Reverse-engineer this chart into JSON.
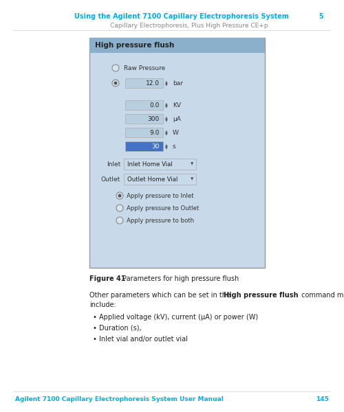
{
  "bg_color": "#ffffff",
  "header_title": "Using the Agilent 7100 Capillary Electrophoresis System",
  "header_page": "5",
  "header_subtitle": "Capillary Electrophoresis, Plus High Pressure CE+p",
  "header_title_color": "#00aeef",
  "header_subtitle_color": "#888888",
  "footer_text": "Agilent 7100 Capillary Electrophoresis System User Manual",
  "footer_page": "145",
  "footer_color": "#00aeef",
  "dialog_bg": "#c8d9ea",
  "dialog_title": "High pressure flush",
  "dialog_title_bg": "#8ab0cc",
  "field_bg": "#b8cfdf",
  "field_active_bg": "#4472c4",
  "dropdown_bg": "#c8d9ea",
  "text_color": "#333333",
  "body_line1": "Other parameters which can be set in the ",
  "body_bold": "High pressure flush",
  "body_line1_end": " command menu",
  "body_line2": "include:",
  "bullet1": "Applied voltage (kV), current (μA) or power (W)",
  "bullet2": "Duration (s),",
  "bullet3": "Inlet vial and/or outlet vial"
}
